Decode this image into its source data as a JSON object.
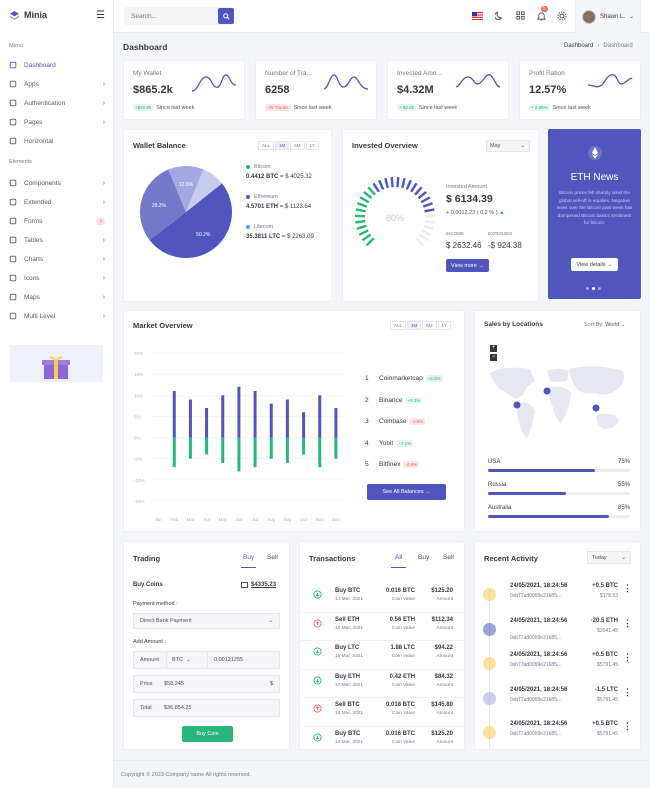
{
  "brand": "Minia",
  "search_placeholder": "Search...",
  "user": "Shawn L.",
  "notif_count": "5",
  "sidebar": {
    "menu": "Menu",
    "elements": "Elements",
    "items": [
      {
        "label": "Dashboard"
      },
      {
        "label": "Apps"
      },
      {
        "label": "Authentication"
      },
      {
        "label": "Pages"
      },
      {
        "label": "Horizontal"
      },
      {
        "label": "Components"
      },
      {
        "label": "Extended"
      },
      {
        "label": "Forms",
        "badge": "7"
      },
      {
        "label": "Tables"
      },
      {
        "label": "Charts"
      },
      {
        "label": "Icons"
      },
      {
        "label": "Maps"
      },
      {
        "label": "Multi Level"
      }
    ]
  },
  "page": {
    "title": "Dashboard",
    "crumb1": "Dashboard",
    "crumb2": "Dashboard"
  },
  "stats": [
    {
      "label": "My Wallet",
      "value": "$865.2k",
      "change": "+$20.9k",
      "note": "Since last week",
      "pos": true
    },
    {
      "label": "Number of Tra...",
      "value": "6258",
      "change": "-29 Trades",
      "note": "Since last week",
      "pos": false
    },
    {
      "label": "Invested Amo...",
      "value": "$4.32M",
      "change": "+ $2.8k",
      "note": "Since last week",
      "pos": true
    },
    {
      "label": "Profit Ration",
      "value": "12.57%",
      "change": "+ 2.95%",
      "note": "Since last week",
      "pos": true
    }
  ],
  "wallet": {
    "title": "Wallet Balance",
    "tabs": [
      "ALL",
      "1M",
      "6M",
      "1Y"
    ],
    "pie": [
      {
        "label": "50.2%",
        "value": 50.2,
        "color": "#5156be"
      },
      {
        "label": "29.2%",
        "value": 29.2,
        "color": "#7378cb"
      },
      {
        "label": "12.5%",
        "value": 12.5,
        "color": "#a5a8e0"
      },
      {
        "label": "",
        "value": 8.1,
        "color": "#c9cbee"
      }
    ],
    "coins": [
      {
        "name": "Bitcoin",
        "amount": "0.4412 BTC",
        "usd": "= $ 4025.32",
        "color": "#2ab57d"
      },
      {
        "name": "Ethereum",
        "amount": "4.5701 ETH",
        "usd": "= $ 1123.64",
        "color": "#5156be"
      },
      {
        "name": "Litecoin",
        "amount": "35.3811 LTC",
        "usd": "= $ 2263.09",
        "color": "#4ba6ef"
      }
    ]
  },
  "invested": {
    "title": "Invested Overview",
    "select": "May",
    "gauge": "80%",
    "gauge_value": 80,
    "amount_label": "Invested Amount",
    "amount": "$ 6134.39",
    "change": "+ 0.0012.23 ( 0.2 % )",
    "income_label": "INCOME",
    "income": "$ 2632.46",
    "expenses_label": "EXPENSES",
    "expenses": "-$ 924.38",
    "button": "View more"
  },
  "eth": {
    "title": "ETH News",
    "body": "Bitcoin prices fell sharply amid the global sell-off in equities. Negative news over the Bitcoin past week has dampened Bitcoin basics sentiment for bitcoin.",
    "button": "View details"
  },
  "market": {
    "title": "Market Overview",
    "tabs": [
      "ALL",
      "1M",
      "6M",
      "1Y"
    ],
    "y_ticks": [
      "20%",
      "15%",
      "10%",
      "5%",
      "0%",
      "-5%",
      "-10%",
      "-15%"
    ],
    "months": [
      "Jan",
      "Feb",
      "Mar",
      "Apr",
      "May",
      "Jun",
      "Jul",
      "Aug",
      "Sep",
      "Oct",
      "Nov",
      "Dec"
    ],
    "list": [
      {
        "rank": "1",
        "name": "Coinmarketcap",
        "change": "+2.5%",
        "pos": true
      },
      {
        "rank": "2",
        "name": "Binance",
        "change": "+8.3%",
        "pos": true
      },
      {
        "rank": "3",
        "name": "Coinbase",
        "change": "-3.6%",
        "pos": false
      },
      {
        "rank": "4",
        "name": "Yobit",
        "change": "+7.1%",
        "pos": true
      },
      {
        "rank": "5",
        "name": "Bitfinex",
        "change": "-0.9%",
        "pos": false
      }
    ],
    "button": "See All Balances"
  },
  "chart_data": {
    "type": "bar",
    "categories": [
      "Jan",
      "Feb",
      "Mar",
      "Apr",
      "May",
      "Jun",
      "Jul",
      "Aug",
      "Sep",
      "Oct",
      "Nov",
      "Dec"
    ],
    "ylim": [
      -15,
      20
    ],
    "series": [
      {
        "values": [
          0,
          11,
          9,
          7,
          10,
          12,
          11,
          8,
          9,
          6,
          10,
          7
        ]
      },
      {
        "values": [
          0,
          -7,
          -5,
          -4,
          -6,
          -8,
          -7,
          -5,
          -6,
          -4,
          -7,
          -5
        ]
      }
    ]
  },
  "locations": {
    "title": "Sales by Locations",
    "sort_label": "Sort By:",
    "sort": "World",
    "rows": [
      {
        "name": "USA",
        "pct": "75%",
        "value": 75
      },
      {
        "name": "Russia",
        "pct": "55%",
        "value": 55
      },
      {
        "name": "Australia",
        "pct": "85%",
        "value": 85
      }
    ]
  },
  "trading": {
    "title": "Trading",
    "tab_buy": "Buy",
    "tab_sell": "Sell",
    "buy_coins": "Buy Coins",
    "balance": "$4335.23",
    "payment_label": "Payment method :",
    "payment": "Direct Bank Payment",
    "add_amount": "Add Amount :",
    "amount_label": "Amount",
    "coin": "BTC",
    "amount": "0.00121255",
    "price_label": "Price",
    "price": "$58,245",
    "price_unit": "$",
    "total_label": "Total",
    "total": "$36,854.25",
    "button": "Buy Coin"
  },
  "transactions": {
    "title": "Transactions",
    "tabs": [
      "All",
      "Buy",
      "Sell"
    ],
    "rows": [
      {
        "type": "Buy BTC",
        "date": "14 Mar, 2021",
        "amount": "0.016 BTC",
        "amount_label": "Coin Value",
        "usd": "$125.20",
        "usd_label": "Amount",
        "buy": true
      },
      {
        "type": "Sell ETH",
        "date": "15 Mar, 2021",
        "amount": "0.56 ETH",
        "amount_label": "Coin Value",
        "usd": "$112.34",
        "usd_label": "Amount",
        "buy": false
      },
      {
        "type": "Buy LTC",
        "date": "16 Mar, 2021",
        "amount": "1.88 LTC",
        "amount_label": "Coin Value",
        "usd": "$94.22",
        "usd_label": "Amount",
        "buy": true
      },
      {
        "type": "Buy ETH",
        "date": "17 Mar, 2021",
        "amount": "0.42 ETH",
        "amount_label": "Coin Value",
        "usd": "$84.32",
        "usd_label": "Amount",
        "buy": true
      },
      {
        "type": "Sell BTC",
        "date": "18 Mar, 2021",
        "amount": "0.018 BTC",
        "amount_label": "Coin Value",
        "usd": "$145.80",
        "usd_label": "Amount",
        "buy": false
      },
      {
        "type": "Buy BTC",
        "date": "14 Mar, 2021",
        "amount": "0.016 BTC",
        "amount_label": "Coin Value",
        "usd": "$125.20",
        "usd_label": "Amount",
        "buy": true
      }
    ]
  },
  "activity": {
    "title": "Recent Activity",
    "select": "Today",
    "rows": [
      {
        "date": "24/05/2021, 18:24:56",
        "hash": "0xb77ad0099e21685...",
        "amt": "+0.5 BTC",
        "usd": "$178.53",
        "color": "#f7cc53"
      },
      {
        "date": "24/05/2021, 18:24:56",
        "hash": "0xb77ad0099e21685...",
        "amt": "-20.5 ETH",
        "usd": "$3541.45",
        "color": "#5156be"
      },
      {
        "date": "24/05/2021, 18:24:56",
        "hash": "0xb77ad0099e21685...",
        "amt": "+0.5 BTC",
        "usd": "$5791.45",
        "color": "#f7cc53"
      },
      {
        "date": "24/05/2021, 18:24:56",
        "hash": "0xb77ad0099e21685...",
        "amt": "-1.5 LTC",
        "usd": "$5791.45",
        "color": "#a5a8e0"
      },
      {
        "date": "24/05/2021, 18:24:56",
        "hash": "0xb77ad0099e21685...",
        "amt": "+0.5 BTC",
        "usd": "$5791.45",
        "color": "#f7cc53"
      }
    ]
  },
  "footer": "Copyright © 2023 Company name All rights reserved."
}
